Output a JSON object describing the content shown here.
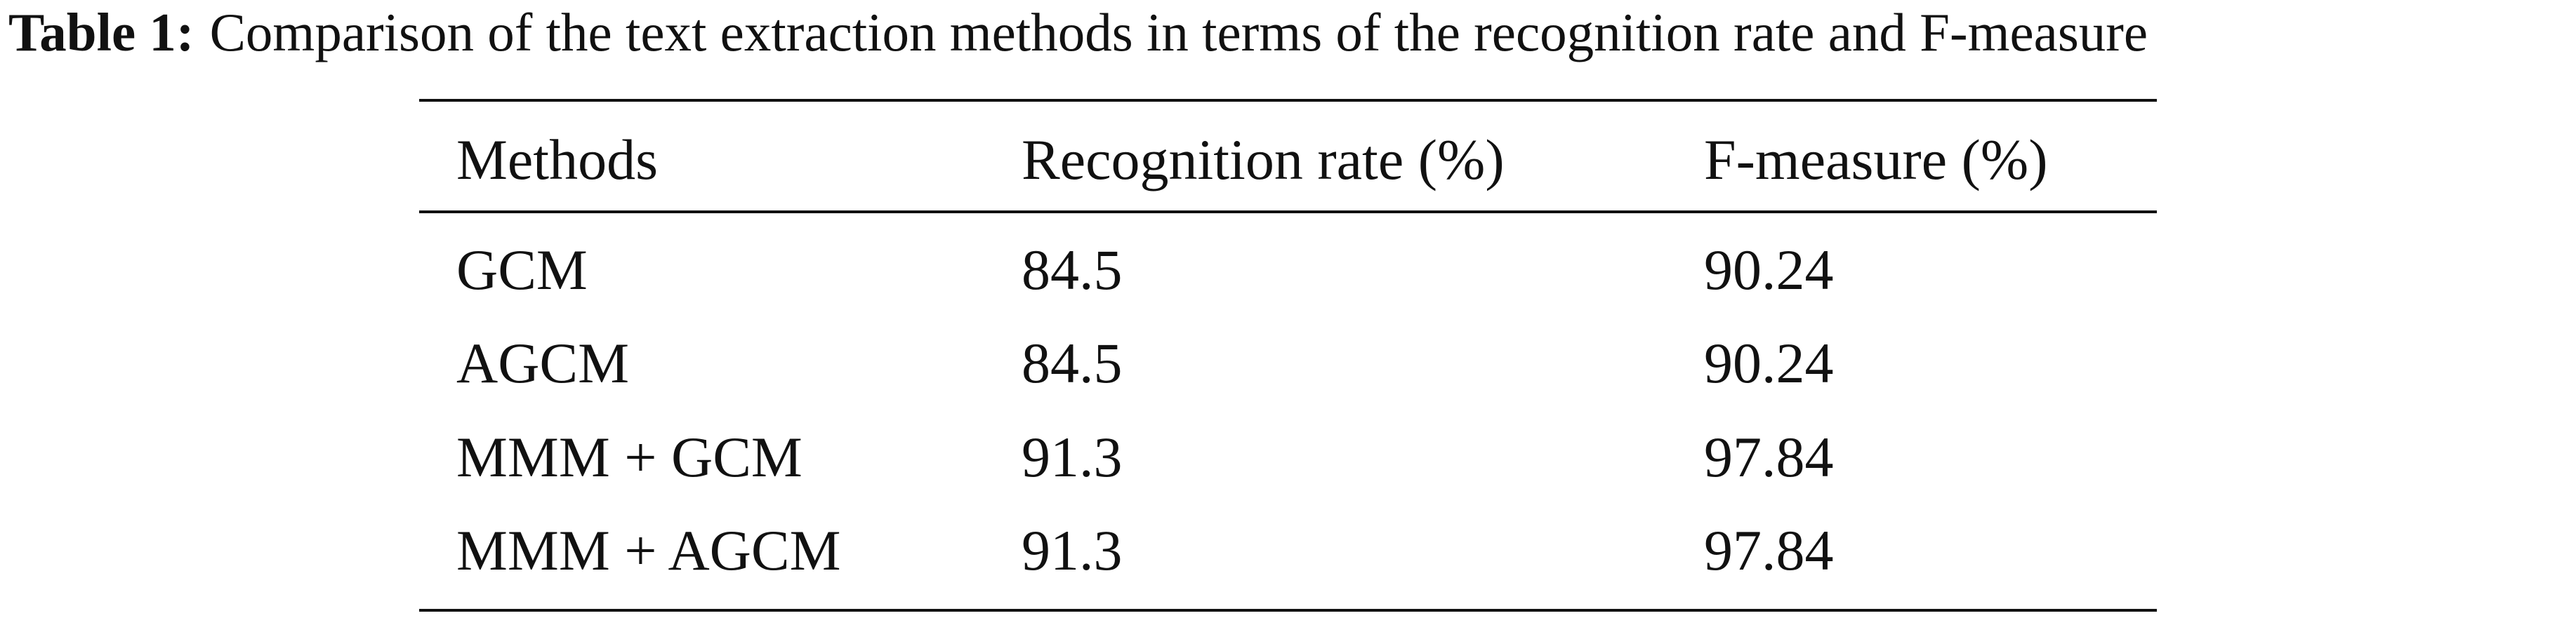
{
  "caption": {
    "label": "Table 1:",
    "text": "Comparison of the text extraction methods in terms of the recognition rate and F-measure"
  },
  "table": {
    "header": [
      "Methods",
      "Recognition rate (%)",
      "F-measure (%)"
    ],
    "rows": [
      [
        "GCM",
        "84.5",
        "90.24"
      ],
      [
        "AGCM",
        "84.5",
        "90.24"
      ],
      [
        "MMM + GCM",
        "91.3",
        "97.84"
      ],
      [
        "MMM + AGCM",
        "91.3",
        "97.84"
      ]
    ]
  }
}
